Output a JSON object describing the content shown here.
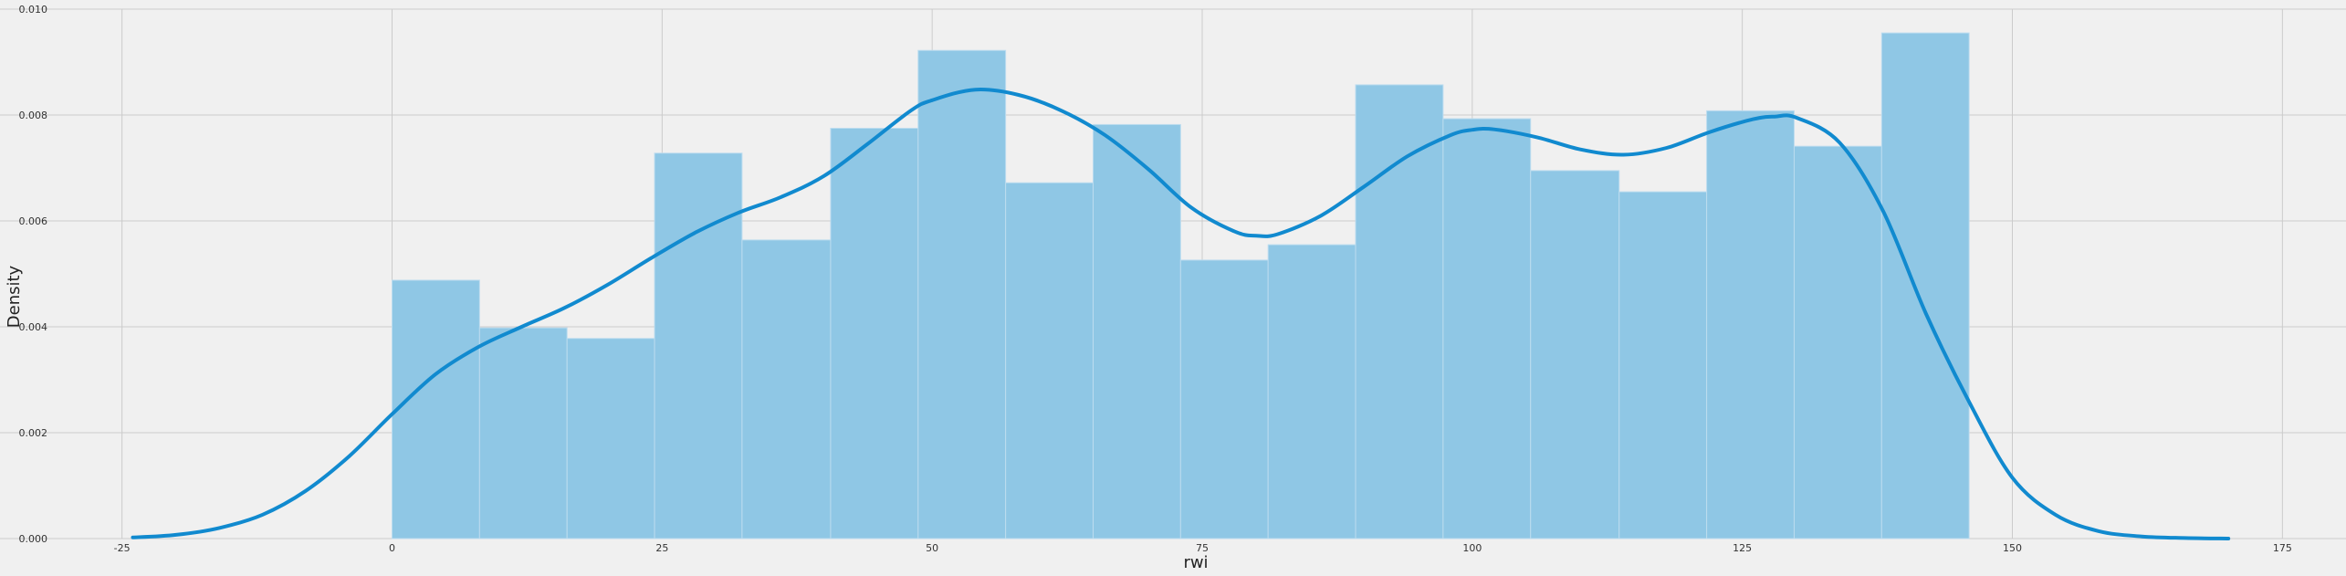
{
  "chart_data": {
    "type": "bar",
    "subtype": "histogram-with-kde",
    "xlabel": "rwi",
    "ylabel": "Density",
    "xlim": [
      -27,
      177
    ],
    "ylim": [
      0,
      0.01
    ],
    "grid": true,
    "x_ticks": [
      -25,
      0,
      25,
      50,
      75,
      100,
      125,
      150,
      175
    ],
    "x_tick_labels": [
      "-25",
      "0",
      "25",
      "50",
      "75",
      "100",
      "125",
      "150",
      "175"
    ],
    "y_ticks": [
      0,
      0.002,
      0.004,
      0.006,
      0.008,
      0.01
    ],
    "y_tick_labels": [
      "0.000",
      "0.002",
      "0.004",
      "0.006",
      "0.008",
      "0.010"
    ],
    "bins": [
      {
        "x0": 0.0,
        "x1": 8.1,
        "density": 0.00488
      },
      {
        "x0": 8.1,
        "x1": 16.2,
        "density": 0.00398
      },
      {
        "x0": 16.2,
        "x1": 24.3,
        "density": 0.00378
      },
      {
        "x0": 24.3,
        "x1": 32.4,
        "density": 0.00728
      },
      {
        "x0": 32.4,
        "x1": 40.6,
        "density": 0.00564
      },
      {
        "x0": 40.6,
        "x1": 48.7,
        "density": 0.00775
      },
      {
        "x0": 48.7,
        "x1": 56.8,
        "density": 0.00922
      },
      {
        "x0": 56.8,
        "x1": 64.9,
        "density": 0.00672
      },
      {
        "x0": 64.9,
        "x1": 73.0,
        "density": 0.00782
      },
      {
        "x0": 73.0,
        "x1": 81.1,
        "density": 0.00526
      },
      {
        "x0": 81.1,
        "x1": 89.2,
        "density": 0.00555
      },
      {
        "x0": 89.2,
        "x1": 97.3,
        "density": 0.00857
      },
      {
        "x0": 97.3,
        "x1": 105.4,
        "density": 0.00793
      },
      {
        "x0": 105.4,
        "x1": 113.6,
        "density": 0.00695
      },
      {
        "x0": 113.6,
        "x1": 121.7,
        "density": 0.00655
      },
      {
        "x0": 121.7,
        "x1": 129.8,
        "density": 0.00808
      },
      {
        "x0": 129.8,
        "x1": 137.9,
        "density": 0.00741
      },
      {
        "x0": 137.9,
        "x1": 146.0,
        "density": 0.00955
      }
    ],
    "kde": {
      "x": [
        -24,
        -20,
        -16,
        -12,
        -8,
        -4,
        0,
        4,
        8,
        12,
        16,
        20,
        24,
        28,
        32,
        36,
        40,
        44,
        48,
        50,
        54,
        58,
        62,
        66,
        70,
        74,
        78,
        80,
        82,
        86,
        90,
        94,
        98,
        100,
        102,
        106,
        110,
        114,
        118,
        122,
        126,
        128,
        130,
        134,
        138,
        142,
        146,
        150,
        154,
        158,
        162,
        166,
        170
      ],
      "y": [
        2e-05,
        7e-05,
        0.0002,
        0.00045,
        0.0009,
        0.00155,
        0.00235,
        0.0031,
        0.00362,
        0.004,
        0.00436,
        0.0048,
        0.0053,
        0.00577,
        0.00615,
        0.00645,
        0.00685,
        0.00745,
        0.00808,
        0.00828,
        0.00848,
        0.00838,
        0.00808,
        0.00762,
        0.00698,
        0.00625,
        0.0058,
        0.00572,
        0.00575,
        0.0061,
        0.00665,
        0.00722,
        0.00762,
        0.00772,
        0.00773,
        0.00758,
        0.00735,
        0.00725,
        0.00738,
        0.00768,
        0.00792,
        0.00797,
        0.00795,
        0.00748,
        0.0062,
        0.00425,
        0.00258,
        0.00115,
        0.00045,
        0.00014,
        4e-05,
        1e-05,
        0.0
      ]
    },
    "colors": {
      "bar_fill": "#8fc7e5",
      "bar_edge": "#bcdcef",
      "kde_line": "#118acf",
      "grid": "#cbcbcb",
      "background": "#f0f0f0"
    }
  }
}
